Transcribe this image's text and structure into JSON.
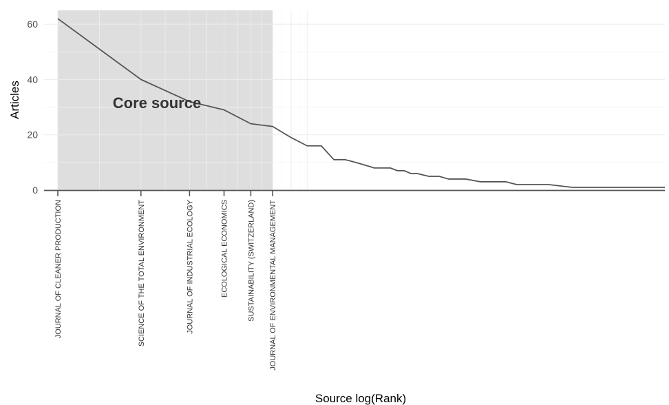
{
  "chart_data": {
    "type": "line",
    "title": "",
    "xlabel": "Source log(Rank)",
    "ylabel": "Articles",
    "x_scale": "log",
    "ylim": [
      0,
      65
    ],
    "y_ticks": [
      0,
      20,
      40,
      60
    ],
    "grid": true,
    "core_zone": {
      "label": "Core source",
      "from_rank": 1,
      "to_rank": 6
    },
    "categories": [
      "JOURNAL OF CLEANER PRODUCTION",
      "SCIENCE OF THE TOTAL ENVIRONMENT",
      "JOURNAL OF INDUSTRIAL ECOLOGY",
      "ECOLOGICAL ECONOMICS",
      "SUSTAINABILITY (SWITZERLAND)",
      "JOURNAL OF ENVIRONMENTAL MANAGEMENT"
    ],
    "series": [
      {
        "x": [
          1,
          2,
          3,
          4,
          5,
          6,
          7,
          8,
          9,
          10,
          11,
          12,
          13,
          14,
          15,
          16,
          17,
          18,
          19,
          20,
          22,
          24,
          26,
          28,
          30,
          34,
          37,
          42,
          46,
          60,
          73,
          158
        ],
        "values": [
          62,
          40,
          32,
          29,
          24,
          23,
          19,
          16,
          16,
          11,
          11,
          10,
          9,
          8,
          8,
          8,
          7,
          7,
          6,
          6,
          5,
          5,
          4,
          4,
          4,
          3,
          3,
          3,
          2,
          2,
          1,
          1
        ]
      }
    ]
  }
}
